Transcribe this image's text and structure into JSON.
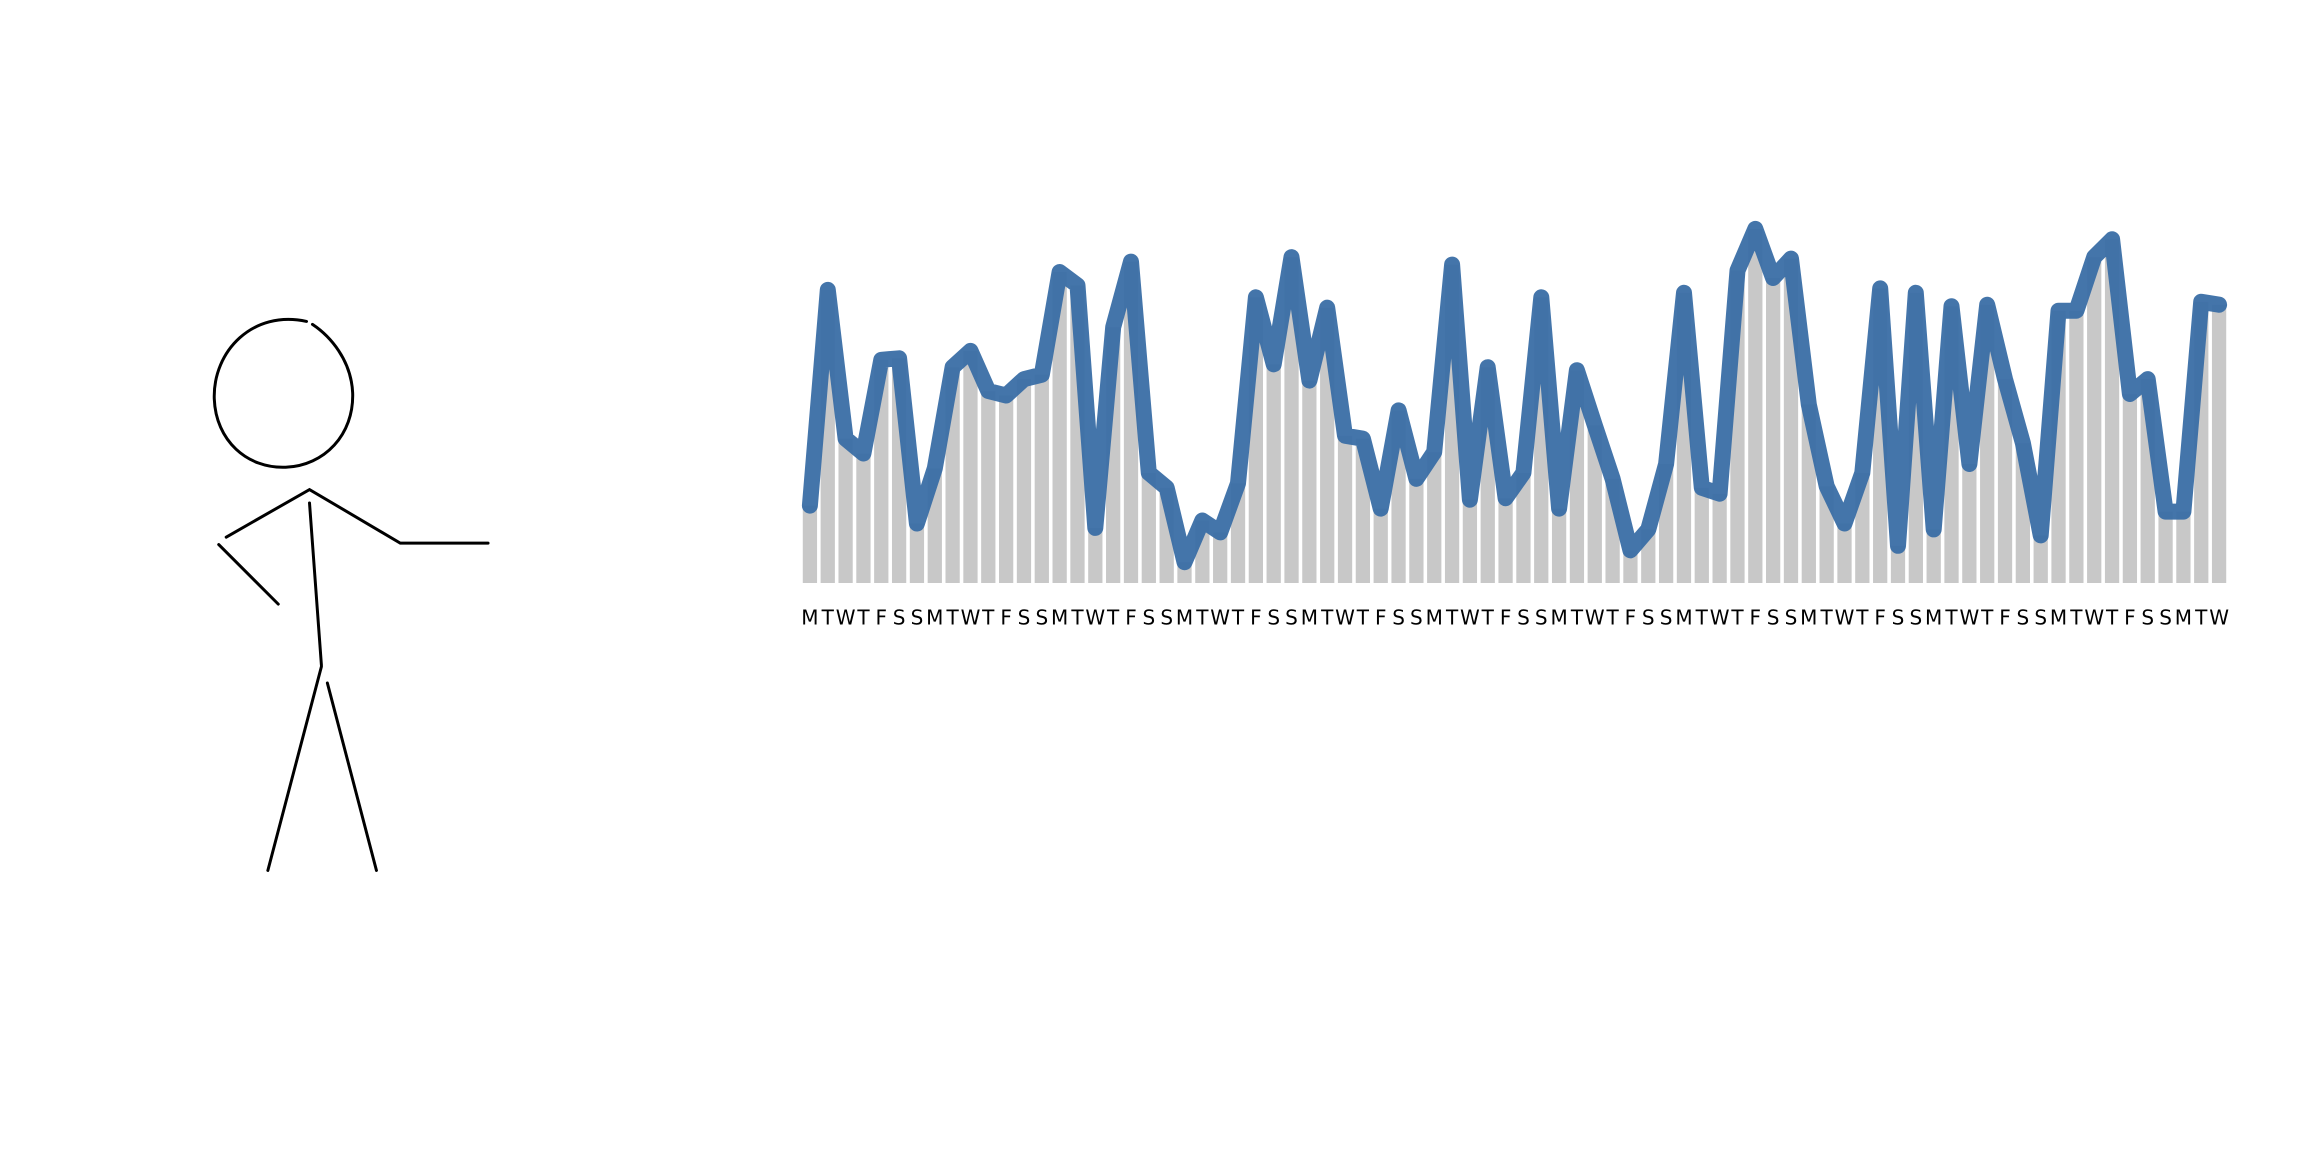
{
  "chart_data": {
    "type": "bar",
    "categories": [
      "M",
      "T",
      "W",
      "T",
      "F",
      "S",
      "S",
      "M",
      "T",
      "W",
      "T",
      "F",
      "S",
      "S",
      "M",
      "T",
      "W",
      "T",
      "F",
      "S",
      "S",
      "M",
      "T",
      "W",
      "T",
      "F",
      "S",
      "S",
      "M",
      "T",
      "W",
      "T",
      "F",
      "S",
      "S",
      "M",
      "T",
      "W",
      "T",
      "F",
      "S",
      "S",
      "M",
      "T",
      "W",
      "T",
      "F",
      "S",
      "S",
      "M",
      "T",
      "W",
      "T",
      "F",
      "S",
      "S",
      "M",
      "T",
      "W",
      "T",
      "F",
      "S",
      "S",
      "M",
      "T",
      "W",
      "T",
      "F",
      "S",
      "S",
      "M",
      "T",
      "W",
      "T",
      "F",
      "S",
      "S",
      "M",
      "T",
      "W"
    ],
    "values": [
      52,
      197,
      97,
      87,
      150,
      151,
      40,
      77,
      145,
      156,
      129,
      126,
      137,
      140,
      209,
      200,
      37,
      172,
      216,
      74,
      64,
      14,
      42,
      34,
      67,
      192,
      147,
      219,
      136,
      185,
      99,
      97,
      50,
      116,
      70,
      88,
      214,
      56,
      145,
      57,
      74,
      192,
      50,
      143,
      106,
      70,
      22,
      36,
      80,
      195,
      64,
      60,
      210,
      238,
      205,
      218,
      120,
      65,
      40,
      74,
      198,
      25,
      195,
      36,
      186,
      80,
      187,
      137,
      94,
      32,
      183,
      183,
      219,
      231,
      127,
      137,
      48,
      48,
      189,
      187
    ],
    "color": "#c8c8c8",
    "line_color": "#3a6ea5",
    "ylim": [
      0,
      250
    ]
  }
}
